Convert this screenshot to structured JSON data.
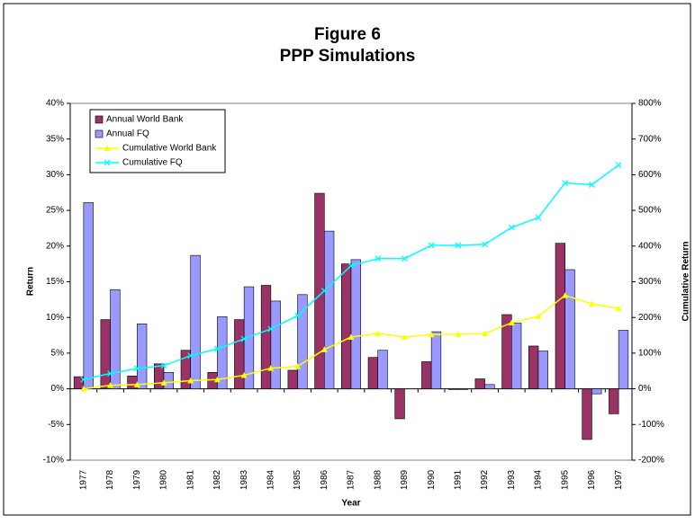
{
  "chart_data": {
    "type": "combo",
    "title": "Figure 6",
    "subtitle": "PPP Simulations",
    "x_label": "Year",
    "y_label": "Return",
    "y2_label": "Cumulative Return",
    "categories": [
      "1977",
      "1978",
      "1979",
      "1980",
      "1981",
      "1982",
      "1983",
      "1984",
      "1985",
      "1986",
      "1987",
      "1988",
      "1989",
      "1990",
      "1991",
      "1992",
      "1993",
      "1994",
      "1995",
      "1996",
      "1997"
    ],
    "ylim": [
      -10,
      40
    ],
    "yticks": [
      {
        "value": -10,
        "label": "-10%"
      },
      {
        "value": -5,
        "label": "-5%"
      },
      {
        "value": 0,
        "label": "0%"
      },
      {
        "value": 5,
        "label": "5%"
      },
      {
        "value": 10,
        "label": "10%"
      },
      {
        "value": 15,
        "label": "15%"
      },
      {
        "value": 20,
        "label": "20%"
      },
      {
        "value": 25,
        "label": "25%"
      },
      {
        "value": 30,
        "label": "30%"
      },
      {
        "value": 35,
        "label": "35%"
      },
      {
        "value": 40,
        "label": "40%"
      }
    ],
    "y2lim": [
      -200,
      800
    ],
    "y2ticks": [
      {
        "value": -200,
        "label": "-200%"
      },
      {
        "value": -100,
        "label": "-100%"
      },
      {
        "value": 0,
        "label": "0%"
      },
      {
        "value": 100,
        "label": "100%"
      },
      {
        "value": 200,
        "label": "200%"
      },
      {
        "value": 300,
        "label": "300%"
      },
      {
        "value": 400,
        "label": "400%"
      },
      {
        "value": 500,
        "label": "500%"
      },
      {
        "value": 600,
        "label": "600%"
      },
      {
        "value": 700,
        "label": "700%"
      },
      {
        "value": 800,
        "label": "800%"
      }
    ],
    "legend": "top-left",
    "series": [
      {
        "name": "Annual World Bank",
        "kind": "bar",
        "color": "#993366",
        "values": [
          1.7,
          9.7,
          1.8,
          3.5,
          5.4,
          2.3,
          9.7,
          14.5,
          2.6,
          27.4,
          17.5,
          4.4,
          -4.2,
          3.8,
          -0.1,
          1.4,
          10.4,
          6.0,
          20.4,
          -7.1,
          -3.5
        ]
      },
      {
        "name": "Annual FQ",
        "kind": "bar",
        "color": "#9999ff",
        "values": [
          26.1,
          13.9,
          9.1,
          2.3,
          18.7,
          10.1,
          14.3,
          12.3,
          13.2,
          22.1,
          18.1,
          5.4,
          0,
          8.0,
          -0.1,
          0.6,
          9.2,
          5.3,
          16.7,
          -0.7,
          8.2
        ]
      },
      {
        "name": "Cumulative World Bank",
        "kind": "line",
        "marker": "triangle",
        "axis": "y2",
        "color": "#ffff00",
        "values": [
          0,
          10,
          12,
          17,
          23,
          26,
          38,
          58,
          63,
          110,
          145,
          155,
          145,
          152,
          153,
          155,
          185,
          203,
          262,
          238,
          225
        ]
      },
      {
        "name": "Cumulative FQ",
        "kind": "line",
        "marker": "x",
        "axis": "y2",
        "color": "#00ffff",
        "values": [
          26,
          43,
          57,
          65,
          93,
          112,
          140,
          168,
          205,
          275,
          345,
          365,
          365,
          402,
          402,
          405,
          452,
          480,
          577,
          572,
          627
        ]
      }
    ]
  }
}
